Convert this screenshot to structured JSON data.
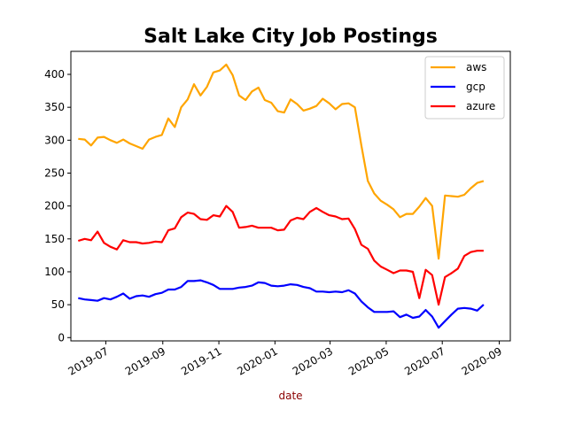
{
  "chart_data": {
    "type": "line",
    "title": "Salt Lake City Job Postings",
    "xlabel": "date",
    "ylabel": "",
    "xlabel_color": "#8b0000",
    "xlim": [
      "2019-05-24",
      "2020-09-13"
    ],
    "ylim": [
      -5,
      435
    ],
    "x_ticks": [
      "2019-07",
      "2019-09",
      "2019-11",
      "2020-01",
      "2020-03",
      "2020-05",
      "2020-07",
      "2020-09"
    ],
    "y_ticks": [
      0,
      50,
      100,
      150,
      200,
      250,
      300,
      350,
      400
    ],
    "legend_position": "top-right",
    "grid": false,
    "x": [
      "2019-06-01",
      "2019-06-08",
      "2019-06-15",
      "2019-06-22",
      "2019-06-29",
      "2019-07-06",
      "2019-07-13",
      "2019-07-20",
      "2019-07-27",
      "2019-08-03",
      "2019-08-10",
      "2019-08-17",
      "2019-08-24",
      "2019-08-31",
      "2019-09-07",
      "2019-09-14",
      "2019-09-21",
      "2019-09-28",
      "2019-10-05",
      "2019-10-12",
      "2019-10-19",
      "2019-10-26",
      "2019-11-02",
      "2019-11-09",
      "2019-11-16",
      "2019-11-23",
      "2019-11-30",
      "2019-12-07",
      "2019-12-14",
      "2019-12-21",
      "2019-12-28",
      "2020-01-04",
      "2020-01-11",
      "2020-01-18",
      "2020-01-25",
      "2020-02-01",
      "2020-02-08",
      "2020-02-15",
      "2020-02-22",
      "2020-02-29",
      "2020-03-07",
      "2020-03-14",
      "2020-03-21",
      "2020-03-28",
      "2020-04-04",
      "2020-04-11",
      "2020-04-18",
      "2020-04-25",
      "2020-05-02",
      "2020-05-09",
      "2020-05-16",
      "2020-05-23",
      "2020-05-30",
      "2020-06-06",
      "2020-06-13",
      "2020-06-20",
      "2020-06-27",
      "2020-07-04",
      "2020-07-11",
      "2020-07-18",
      "2020-07-25",
      "2020-08-01",
      "2020-08-08",
      "2020-08-15"
    ],
    "series": [
      {
        "name": "aws",
        "color": "#ffa500",
        "values": [
          302,
          301,
          292,
          304,
          305,
          300,
          296,
          301,
          295,
          291,
          287,
          301,
          305,
          308,
          333,
          320,
          350,
          362,
          385,
          368,
          381,
          403,
          406,
          415,
          399,
          368,
          361,
          374,
          380,
          361,
          357,
          344,
          342,
          362,
          355,
          345,
          348,
          352,
          363,
          356,
          347,
          355,
          356,
          350,
          292,
          238,
          219,
          208,
          202,
          195,
          183,
          188,
          188,
          199,
          212,
          200,
          120,
          216,
          215,
          214,
          217,
          227,
          235,
          238
        ]
      },
      {
        "name": "gcp",
        "color": "#0000ff",
        "values": [
          60,
          58,
          57,
          56,
          60,
          58,
          62,
          67,
          59,
          63,
          64,
          62,
          66,
          68,
          73,
          73,
          77,
          86,
          86,
          87,
          84,
          80,
          74,
          74,
          74,
          76,
          77,
          79,
          84,
          83,
          79,
          78,
          79,
          81,
          80,
          77,
          75,
          70,
          70,
          69,
          70,
          69,
          72,
          67,
          55,
          46,
          39,
          39,
          39,
          40,
          31,
          35,
          30,
          32,
          42,
          32,
          15,
          25,
          35,
          44,
          45,
          44,
          41,
          50
        ]
      },
      {
        "name": "azure",
        "color": "#ff0000",
        "values": [
          147,
          150,
          148,
          161,
          144,
          138,
          134,
          148,
          145,
          145,
          143,
          144,
          146,
          145,
          163,
          166,
          183,
          190,
          188,
          180,
          179,
          186,
          184,
          200,
          191,
          167,
          168,
          170,
          167,
          167,
          167,
          163,
          164,
          178,
          182,
          180,
          191,
          197,
          191,
          186,
          184,
          180,
          181,
          165,
          141,
          135,
          117,
          108,
          103,
          98,
          102,
          102,
          100,
          60,
          103,
          95,
          50,
          92,
          98,
          105,
          124,
          130,
          132,
          132
        ]
      }
    ]
  }
}
